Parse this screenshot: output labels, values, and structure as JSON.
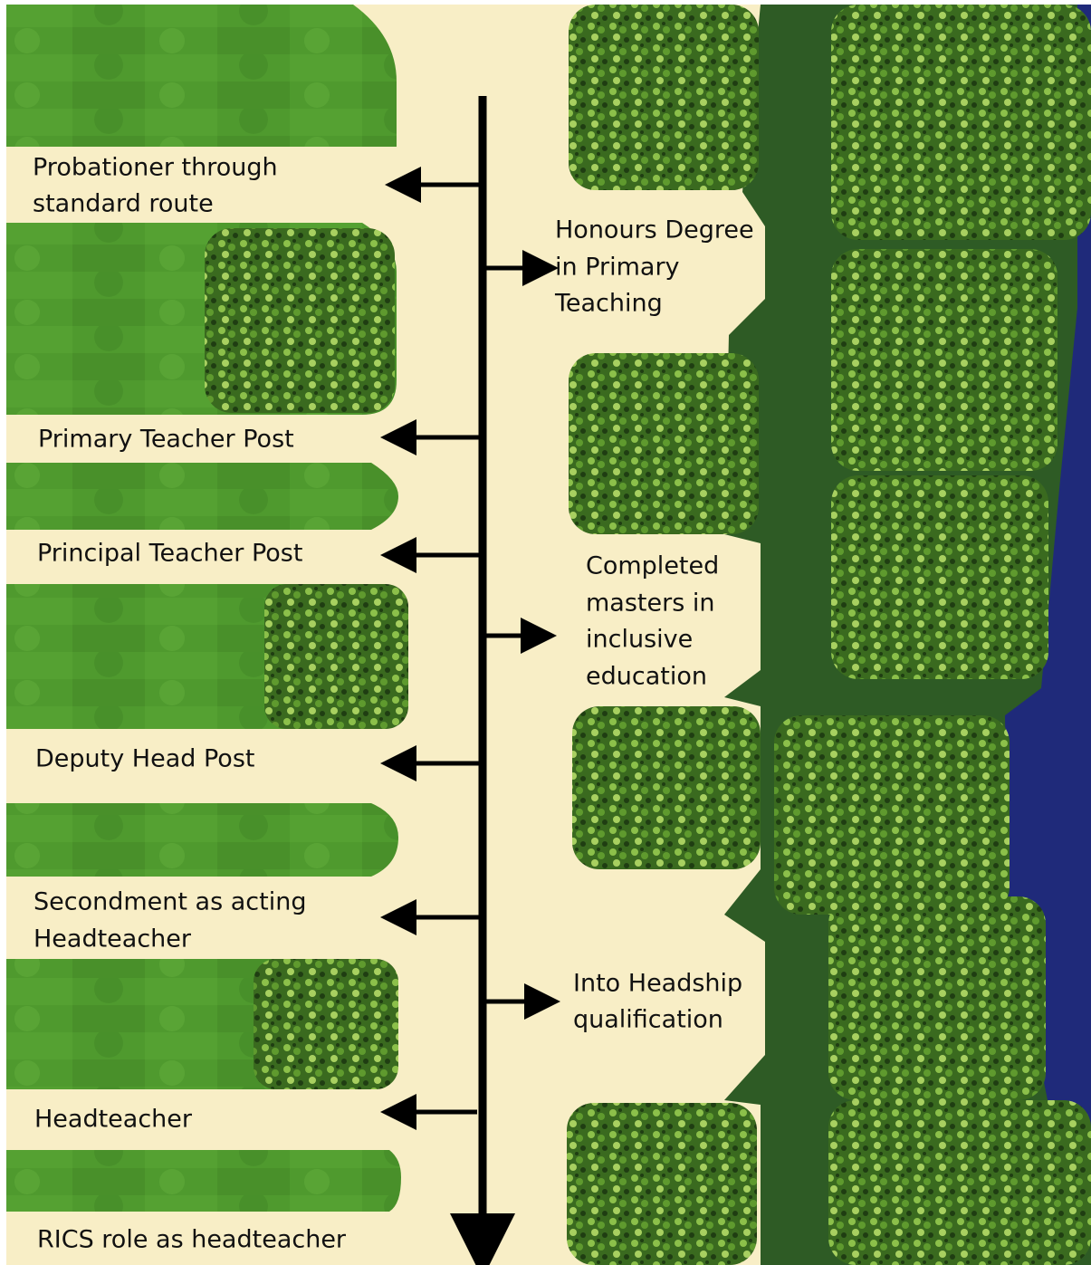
{
  "career_posts": [
    {
      "lines": [
        "Probationer through",
        "standard route"
      ]
    },
    {
      "lines": [
        "Primary Teacher Post"
      ]
    },
    {
      "lines": [
        "Principal Teacher Post"
      ]
    },
    {
      "lines": [
        "Deputy Head Post"
      ]
    },
    {
      "lines": [
        "Secondment as acting",
        "Headteacher"
      ]
    },
    {
      "lines": [
        "Headteacher"
      ]
    },
    {
      "lines": [
        "RICS role as headteacher"
      ]
    }
  ],
  "qualifications": [
    {
      "lines": [
        "Honours Degree",
        "in Primary",
        "Teaching"
      ]
    },
    {
      "lines": [
        "Completed",
        "masters in",
        "inclusive",
        "education"
      ]
    },
    {
      "lines": [
        "Into Headship",
        "qualification"
      ]
    }
  ]
}
